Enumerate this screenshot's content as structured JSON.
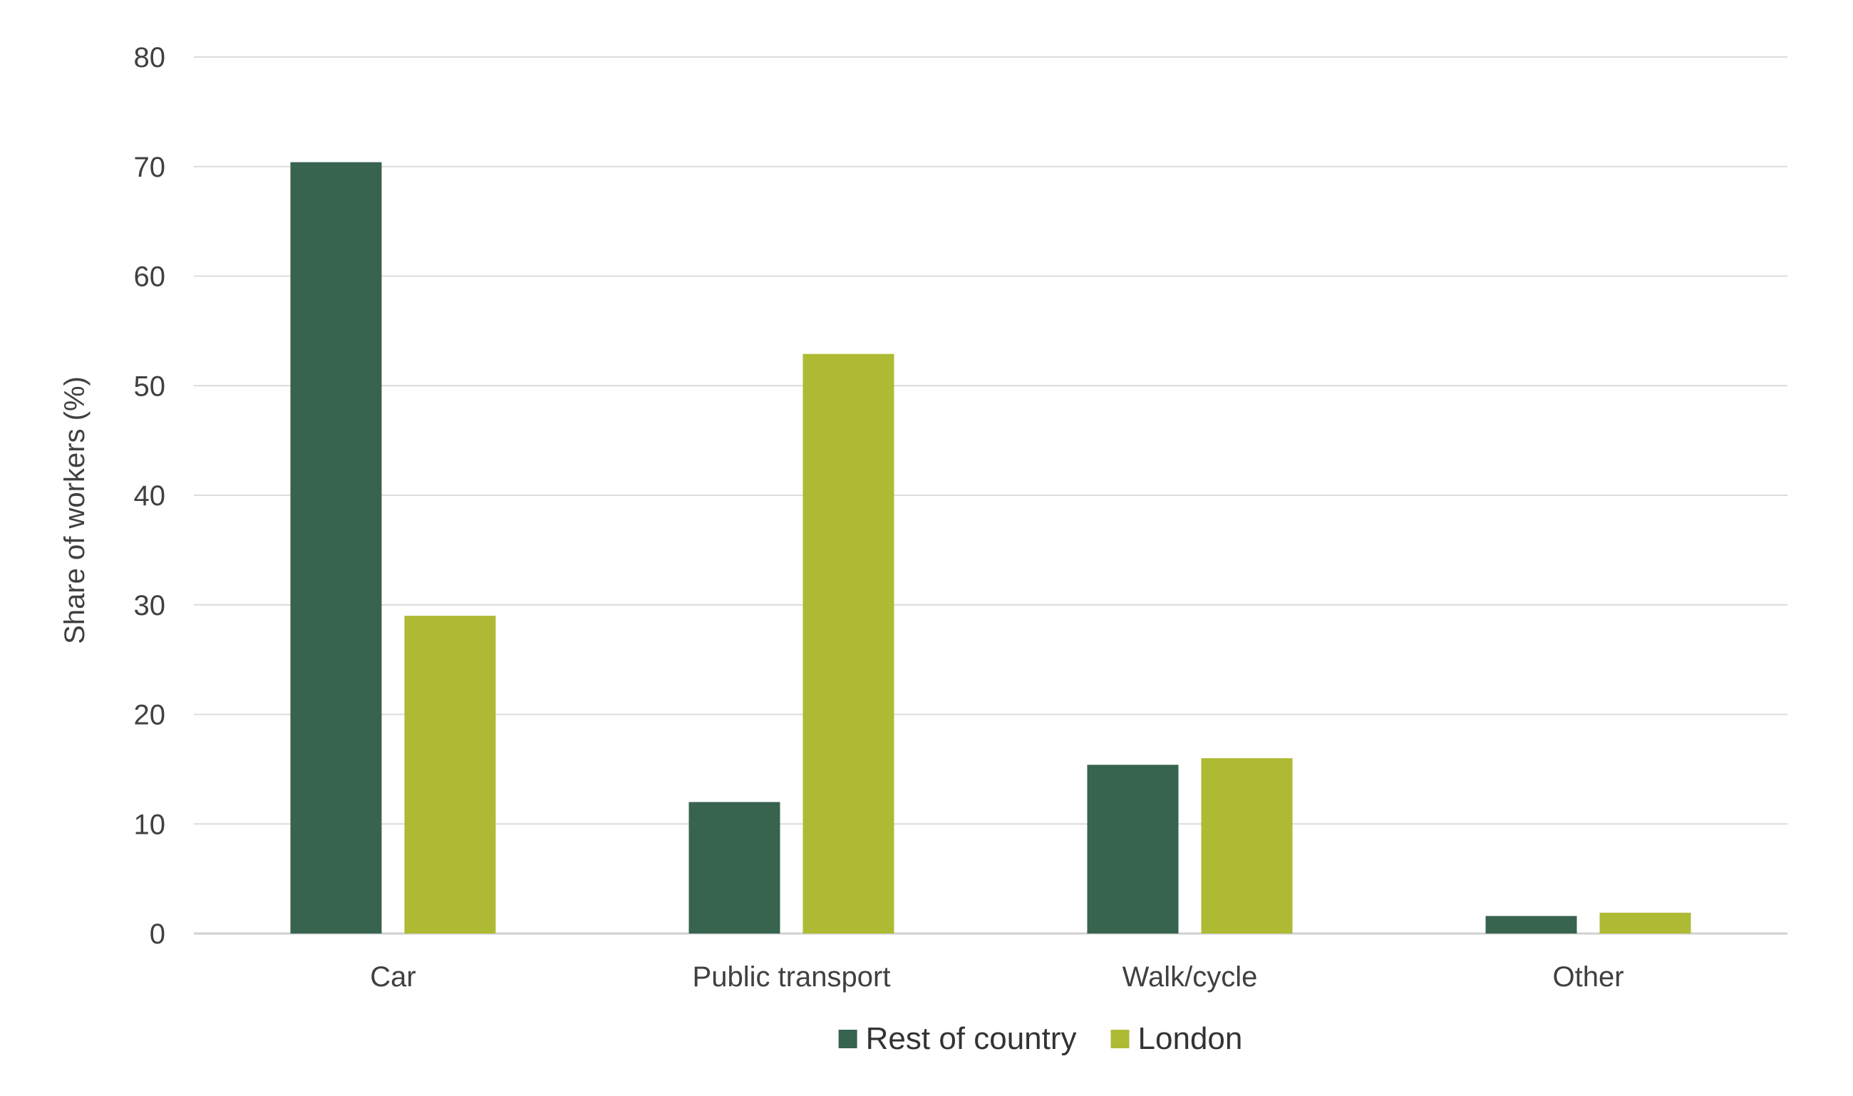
{
  "chart_data": {
    "type": "bar",
    "title": "",
    "xlabel": "",
    "ylabel": "Share of workers (%)",
    "ylim": [
      0,
      80
    ],
    "yticks": [
      0,
      10,
      20,
      30,
      40,
      50,
      60,
      70,
      80
    ],
    "grid": true,
    "legend_position": "bottom",
    "categories": [
      "Car",
      "Public transport",
      "Walk/cycle",
      "Other"
    ],
    "series": [
      {
        "name": "Rest of country",
        "color": "#37634F",
        "values": [
          70.4,
          12.0,
          15.4,
          1.6
        ]
      },
      {
        "name": "London",
        "color": "#AEBA34",
        "values": [
          29.0,
          52.9,
          16.0,
          1.9
        ]
      }
    ]
  }
}
